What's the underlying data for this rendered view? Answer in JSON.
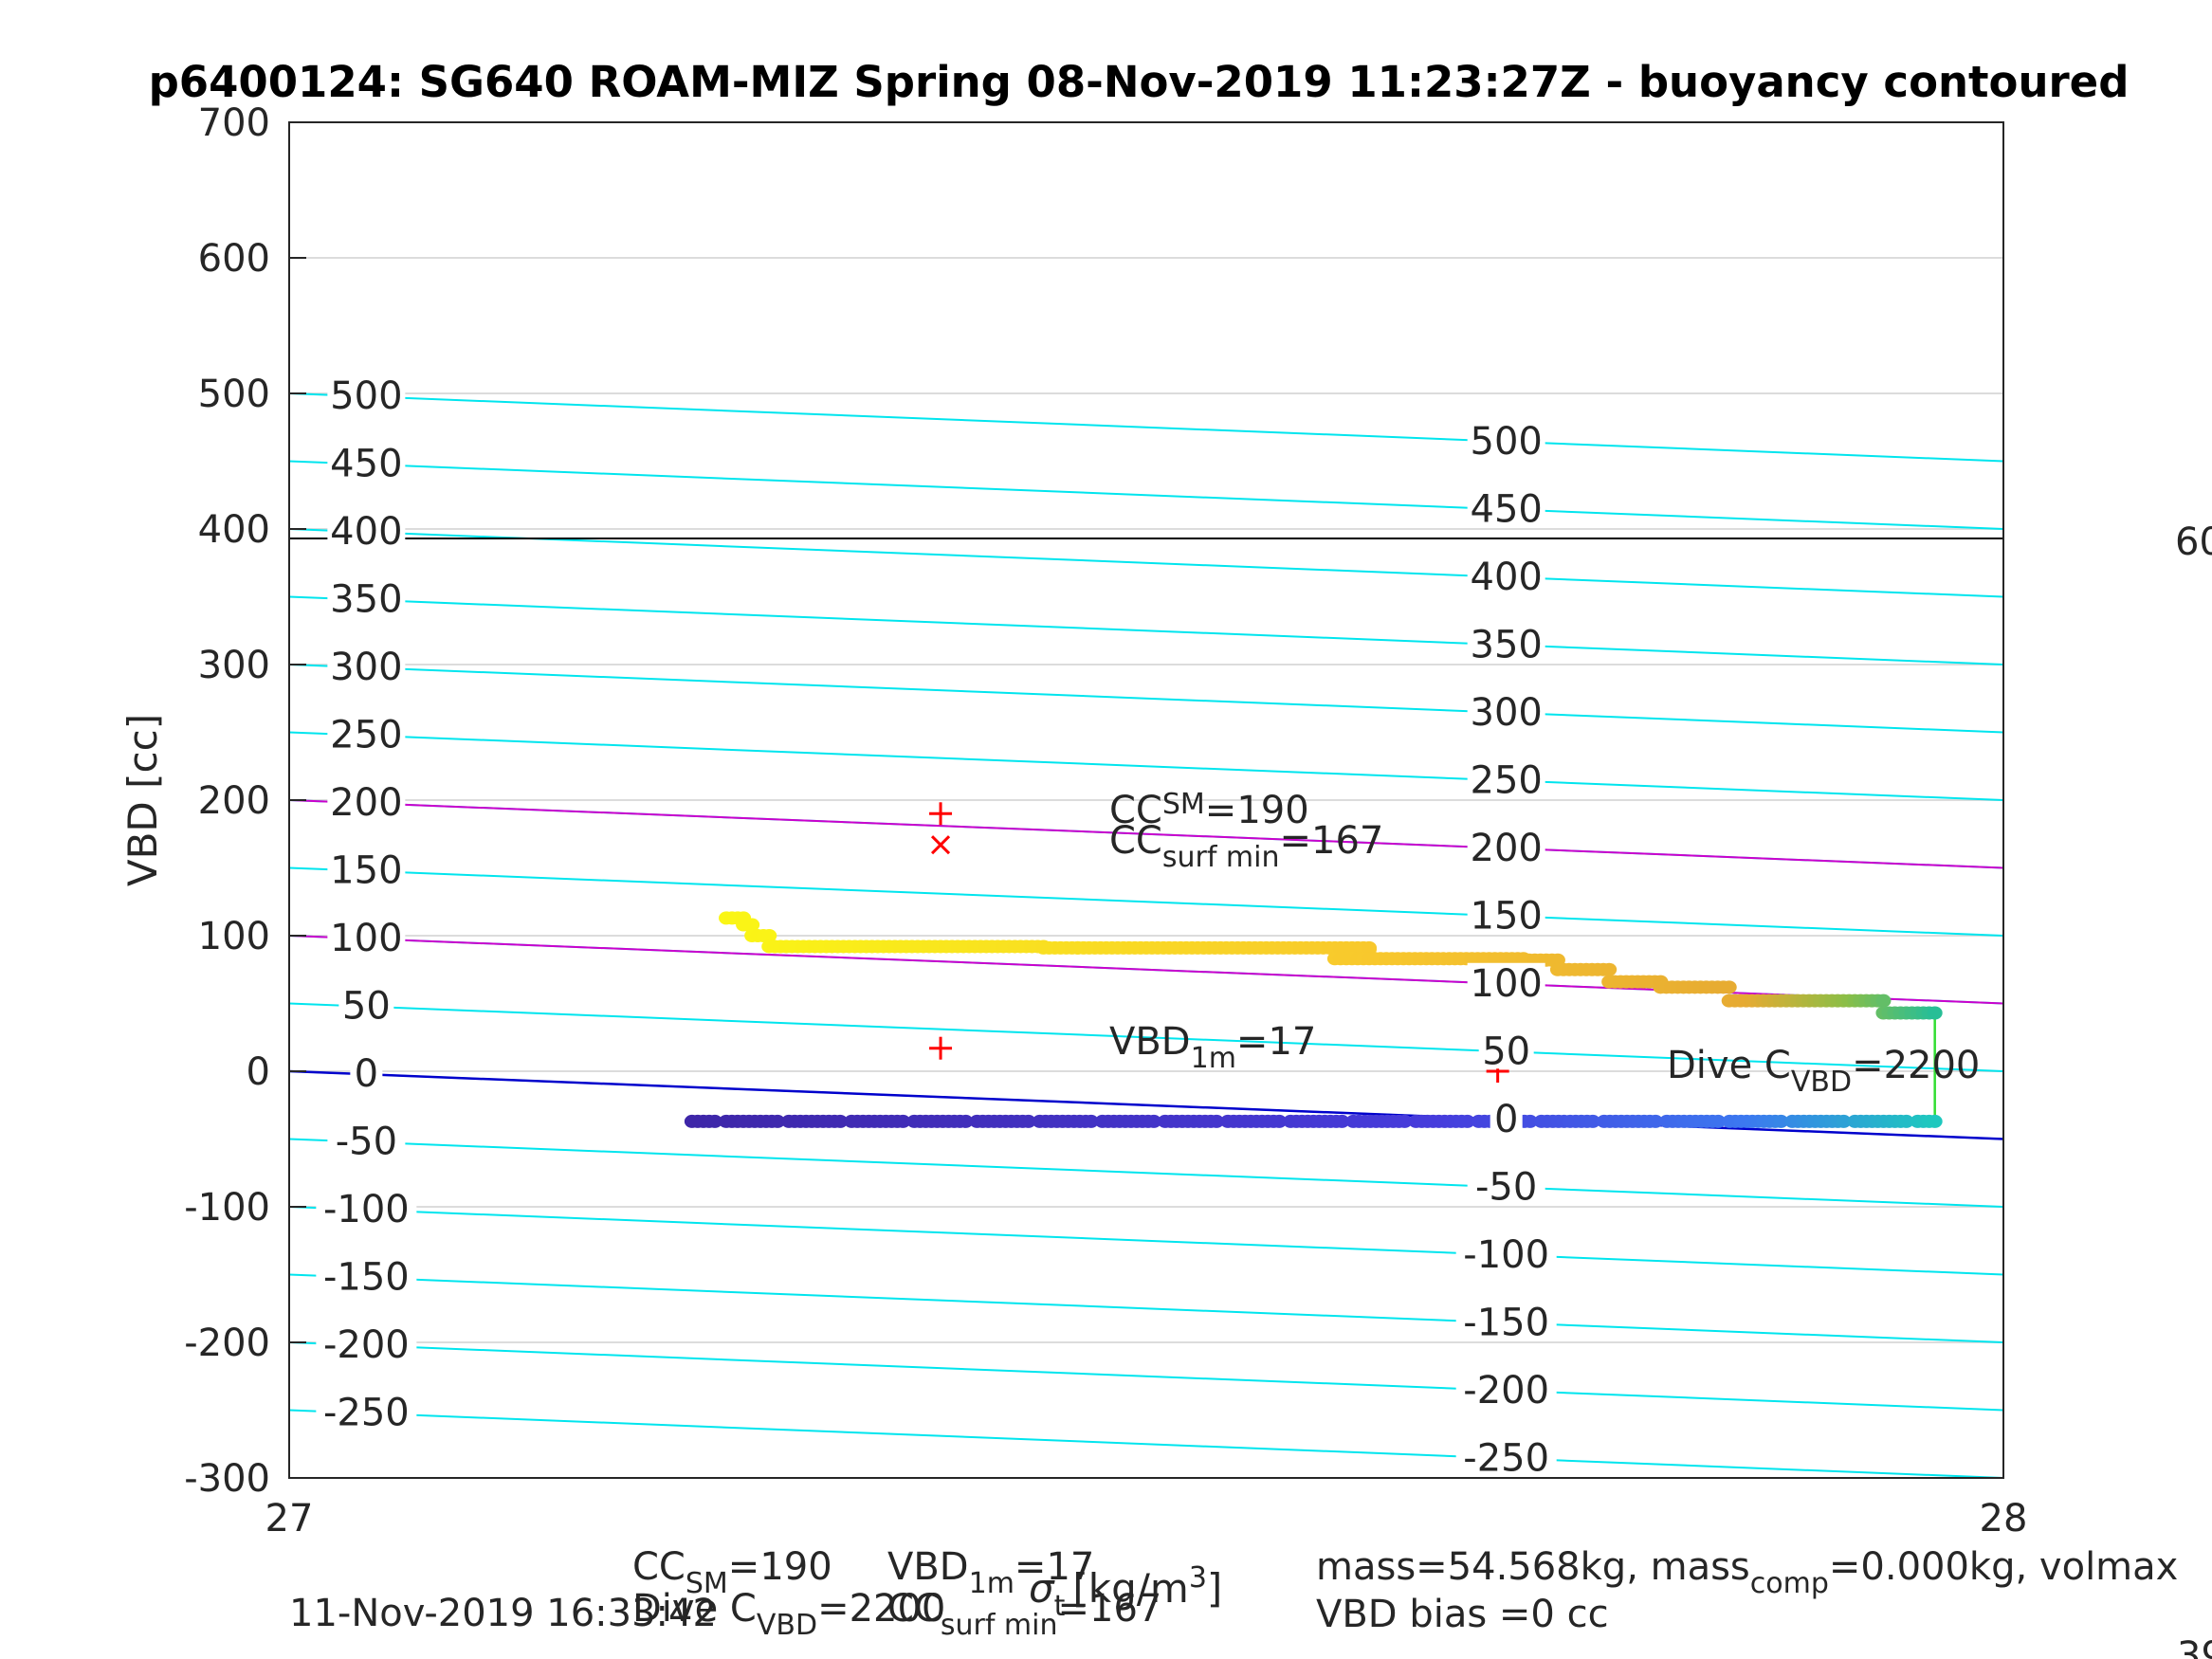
{
  "chart_data": {
    "type": "scatter",
    "title": "p6400124: SG640 ROAM-MIZ Spring 08-Nov-2019 11:23:27Z - buoyancy contoured",
    "ylabel": "VBD [cc]",
    "xlabel_parts": [
      "[kg/m",
      "3",
      "]"
    ],
    "xlim": [
      27,
      28
    ],
    "ylim": [
      -300,
      700
    ],
    "xticks": [
      "27",
      "28"
    ],
    "yticks": [
      "700",
      "600",
      "500",
      "400",
      "300",
      "200",
      "100",
      "0",
      "-100",
      "-200",
      "-300"
    ],
    "grid": true,
    "colors": {
      "contour": "#00e5ee",
      "sm_line": "#cc00cc",
      "zero_line": "#0000cc",
      "max_line": "#000000",
      "link_line": "#33dd33",
      "marker": "#ff0000",
      "gridline": "#dcdcdc"
    },
    "reference_lines": {
      "max_level": 393,
      "contour_slope_per_unit_x": -50
    },
    "contour_levels": [
      500,
      450,
      400,
      350,
      300,
      250,
      200,
      150,
      100,
      50,
      0,
      -50,
      -100,
      -150,
      -200,
      -250
    ],
    "contour_labels_left": [
      "500",
      "450",
      "400",
      "350",
      "300",
      "250",
      "200",
      "150",
      "100",
      "50",
      "0",
      "-50",
      "-100",
      "-150",
      "-200",
      "-250"
    ],
    "contour_labels_right": [
      "500",
      "450",
      "400",
      "350",
      "300",
      "250",
      "200",
      "150",
      "100",
      "50",
      "0",
      "-50",
      "-100",
      "-150",
      "-200",
      "-250"
    ],
    "series": [
      {
        "segments": [
          [
            27.255,
            27.265,
            113
          ],
          [
            27.265,
            27.27,
            108
          ],
          [
            27.27,
            27.28,
            100
          ],
          [
            27.28,
            27.44,
            92
          ],
          [
            27.44,
            27.46,
            91
          ],
          [
            27.46,
            27.63,
            91
          ],
          [
            27.63,
            27.61,
            90
          ],
          [
            27.61,
            27.72,
            83
          ],
          [
            27.72,
            27.74,
            82
          ],
          [
            27.74,
            27.77,
            75
          ],
          [
            27.77,
            27.8,
            66
          ],
          [
            27.8,
            27.84,
            62
          ],
          [
            27.84,
            27.93,
            52
          ],
          [
            27.93,
            27.96,
            43
          ]
        ]
      },
      {
        "segments": [
          [
            27.235,
            27.96,
            -37
          ]
        ]
      }
    ],
    "markers": [
      {
        "label": "CC_SM",
        "type": "plus",
        "x": 27.38,
        "y": 190
      },
      {
        "label": "CC_surf_min",
        "type": "cross",
        "x": 27.38,
        "y": 167
      },
      {
        "label": "VBD_1m",
        "type": "plus",
        "x": 27.38,
        "y": 17
      },
      {
        "label": "Dive C_VBD",
        "type": "plus",
        "x": 27.705,
        "y": 0
      }
    ],
    "annotations": {
      "cc_sm": {
        "main": "CC",
        "sub": "SM",
        "value": "=190"
      },
      "cc_surf_min": {
        "main": "CC",
        "sub": "surf min",
        "value": "=167"
      },
      "vbd_1m": {
        "main": "VBD",
        "sub": "1m",
        "value": "=17"
      },
      "dive_cvbd": {
        "main": "Dive C",
        "sub": "VBD",
        "value": "=2200"
      }
    },
    "right_edge_labels": [
      "60",
      "39"
    ]
  },
  "footer": {
    "timestamp": "11-Nov-2019 16:33:42",
    "line1": {
      "cc": "CC",
      "cc_sub": "SM",
      "cc_val": "=190",
      "vbd": "VBD",
      "vbd_sub": "1m",
      "vbd_val": "=17"
    },
    "line2": {
      "dive": "Dive C",
      "dive_sub": "VBD",
      "dive_val": "=2200",
      "cc": "CC",
      "cc_sub": "surf min",
      "cc_val": "=167"
    },
    "sigma": "σ",
    "sigma_sub": "t",
    "mass_line": {
      "a": "mass=54.568kg, mass",
      "sub": "comp",
      "b": "=0.000kg, volmax"
    },
    "bias": "VBD bias =0 cc"
  }
}
